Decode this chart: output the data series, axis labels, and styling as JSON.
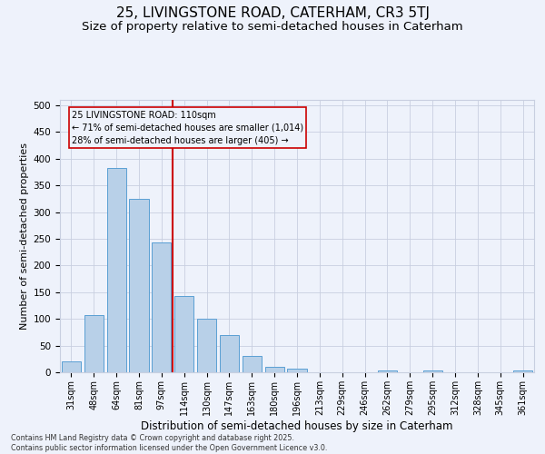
{
  "title": "25, LIVINGSTONE ROAD, CATERHAM, CR3 5TJ",
  "subtitle": "Size of property relative to semi-detached houses in Caterham",
  "xlabel": "Distribution of semi-detached houses by size in Caterham",
  "ylabel": "Number of semi-detached properties",
  "footer": "Contains HM Land Registry data © Crown copyright and database right 2025.\nContains public sector information licensed under the Open Government Licence v3.0.",
  "categories": [
    "31sqm",
    "48sqm",
    "64sqm",
    "81sqm",
    "97sqm",
    "114sqm",
    "130sqm",
    "147sqm",
    "163sqm",
    "180sqm",
    "196sqm",
    "213sqm",
    "229sqm",
    "246sqm",
    "262sqm",
    "279sqm",
    "295sqm",
    "312sqm",
    "328sqm",
    "345sqm",
    "361sqm"
  ],
  "values": [
    20,
    107,
    383,
    325,
    243,
    142,
    101,
    69,
    30,
    10,
    6,
    0,
    0,
    0,
    3,
    0,
    4,
    0,
    0,
    0,
    4
  ],
  "bar_color": "#b8d0e8",
  "bar_edge_color": "#5a9fd4",
  "highlight_label": "25 LIVINGSTONE ROAD: 110sqm",
  "highlight_smaller": "← 71% of semi-detached houses are smaller (1,014)",
  "highlight_larger": "28% of semi-detached houses are larger (405) →",
  "vline_color": "#cc0000",
  "annotation_box_color": "#cc0000",
  "ylim": [
    0,
    510
  ],
  "yticks": [
    0,
    50,
    100,
    150,
    200,
    250,
    300,
    350,
    400,
    450,
    500
  ],
  "title_fontsize": 11,
  "subtitle_fontsize": 9.5,
  "bg_color": "#eef2fb",
  "grid_color": "#c8cfe0"
}
